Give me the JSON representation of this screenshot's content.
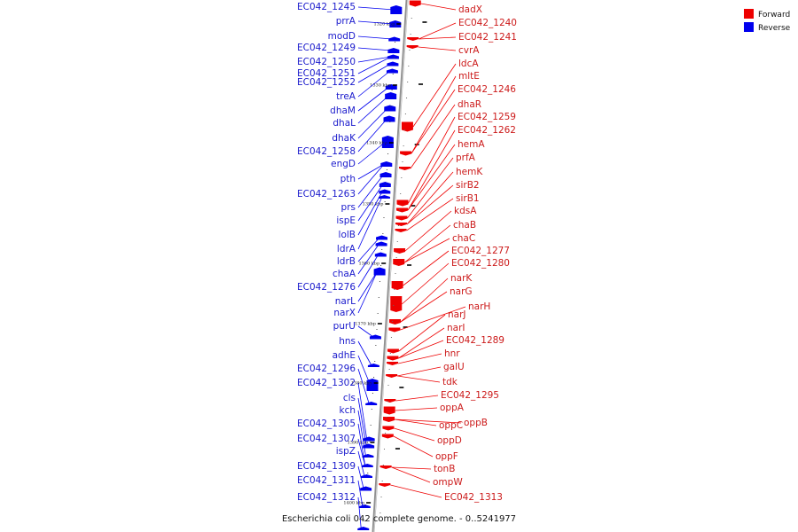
{
  "caption": "Escherichia coli 042 complete genome. - 0..5241977",
  "legend": [
    {
      "label": "Forward",
      "color": "#ee0000"
    },
    {
      "label": "Reverse",
      "color": "#0000ee"
    }
  ],
  "colors": {
    "forward": "#ee0000",
    "reverse": "#0000ee",
    "backbone": "#909090"
  },
  "ticks": [
    "1320 kbp",
    "1330 kbp",
    "1340 kbp",
    "1350 kbp",
    "1360 kbp",
    "1370 kbp",
    "1380 kbp",
    "1390 kbp",
    "1400 kbp"
  ],
  "reverse_genes": [
    "EC042_1245",
    "prrA",
    "modD",
    "EC042_1249",
    "EC042_1250",
    "EC042_1251",
    "EC042_1252",
    "treA",
    "dhaM",
    "dhaL",
    "dhaK",
    "EC042_1258",
    "engD",
    "pth",
    "EC042_1263",
    "prs",
    "ispE",
    "lolB",
    "ldrA",
    "ldrB",
    "chaA",
    "EC042_1276",
    "narL",
    "narX",
    "purU",
    "hns",
    "adhE",
    "EC042_1296",
    "EC042_1302",
    "cls",
    "kch",
    "EC042_1305",
    "EC042_1307",
    "ispZ",
    "EC042_1309",
    "EC042_1311",
    "EC042_1312"
  ],
  "forward_genes": [
    "dadX",
    "EC042_1240",
    "EC042_1241",
    "cvrA",
    "ldcA",
    "mltE",
    "EC042_1246",
    "dhaR",
    "EC042_1259",
    "EC042_1262",
    "hemA",
    "prfA",
    "hemK",
    "sirB2",
    "sirB1",
    "kdsA",
    "chaB",
    "chaC",
    "EC042_1277",
    "EC042_1280",
    "narK",
    "narG",
    "narH",
    "narJ",
    "narI",
    "EC042_1289",
    "hnr",
    "galU",
    "tdk",
    "EC042_1295",
    "oppA",
    "oppC",
    "oppB",
    "oppD",
    "oppF",
    "tonB",
    "ompW",
    "EC042_1313"
  ]
}
